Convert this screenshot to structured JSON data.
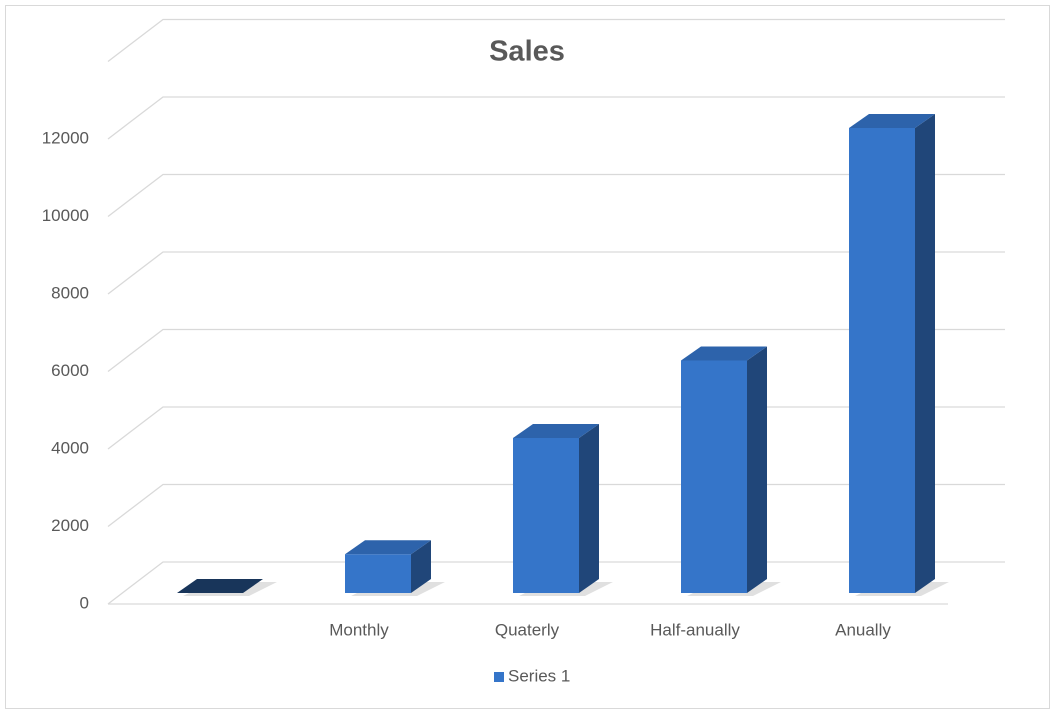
{
  "chart_data": {
    "type": "bar3d",
    "title": "Sales",
    "categories": [
      null,
      "Monthly",
      "Quaterly",
      "Half-anually",
      "Anually"
    ],
    "series": [
      {
        "name": "Series 1",
        "color": "#3575c9",
        "values": [
          0,
          1000,
          4000,
          6000,
          12000
        ]
      }
    ],
    "ylim": [
      0,
      14000
    ],
    "yticks": [
      0,
      2000,
      4000,
      6000,
      8000,
      10000,
      12000
    ],
    "grid": true,
    "legend": "bottom"
  }
}
